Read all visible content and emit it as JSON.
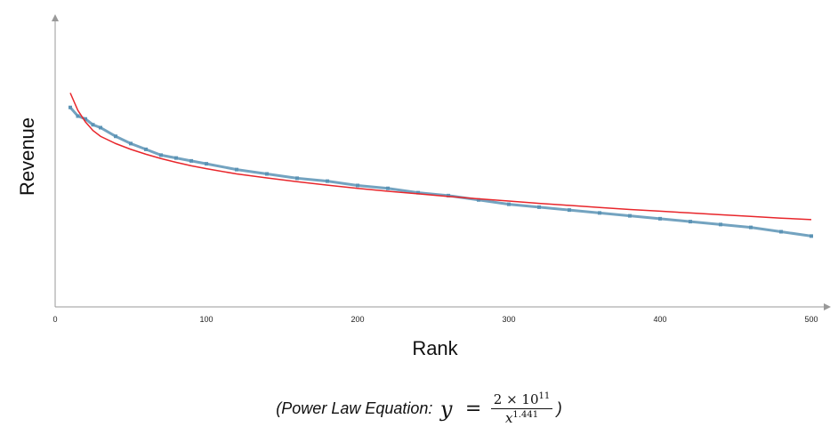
{
  "chart_data": {
    "type": "line",
    "xlabel": "Rank",
    "ylabel": "Revenue",
    "xlim": [
      0,
      500
    ],
    "ylim": [
      0,
      100
    ],
    "x_ticks": [
      0,
      100,
      200,
      300,
      400,
      500
    ],
    "y_ticks_labeled": false,
    "grid": false,
    "legend": "none",
    "series": [
      {
        "color": "#5b93b5",
        "marker": "square",
        "x": [
          10,
          15,
          20,
          25,
          30,
          40,
          50,
          60,
          70,
          80,
          90,
          100,
          120,
          140,
          160,
          180,
          200,
          220,
          240,
          260,
          280,
          300,
          320,
          340,
          360,
          380,
          400,
          420,
          440,
          460,
          480,
          500
        ],
        "y": [
          69,
          66,
          65,
          63,
          62,
          59,
          56.5,
          54.5,
          52.5,
          51.5,
          50.5,
          49.5,
          47.5,
          46,
          44.5,
          43.5,
          42,
          41,
          39.5,
          38.5,
          37,
          35.5,
          34.5,
          33.5,
          32.5,
          31.5,
          30.5,
          29.5,
          28.5,
          27.5,
          26,
          24.5
        ]
      },
      {
        "color": "#e8262b",
        "marker": "none",
        "x": [
          10,
          15,
          20,
          25,
          30,
          40,
          50,
          60,
          70,
          80,
          90,
          100,
          120,
          140,
          160,
          180,
          200,
          220,
          240,
          260,
          280,
          300,
          320,
          340,
          360,
          380,
          400,
          420,
          440,
          460,
          480,
          500
        ],
        "y": [
          74,
          68,
          64,
          61,
          59,
          56.5,
          54.5,
          52.8,
          51.3,
          50,
          48.8,
          47.8,
          46,
          44.6,
          43.3,
          42.1,
          41,
          40,
          39.1,
          38.2,
          37.4,
          36.6,
          35.8,
          35.1,
          34.4,
          33.7,
          33.1,
          32.5,
          31.9,
          31.3,
          30.7,
          30.2
        ]
      }
    ]
  },
  "equation": {
    "lead": "(Power Law Equation:",
    "lhs": "y",
    "equals": "=",
    "numerator": "2 × 10",
    "numerator_exp": "11",
    "denominator": "x",
    "denominator_exp": "1.441",
    "trail": ")"
  }
}
